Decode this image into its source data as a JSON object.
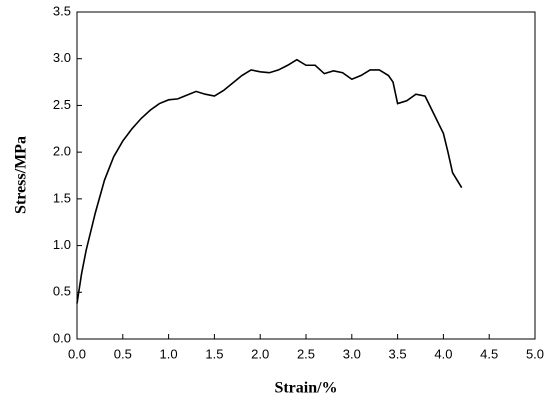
{
  "chart_data": {
    "type": "line",
    "xlabel": "Strain/%",
    "ylabel": "Stress/MPa",
    "x": [
      0.0,
      0.05,
      0.1,
      0.2,
      0.3,
      0.4,
      0.5,
      0.6,
      0.7,
      0.8,
      0.9,
      1.0,
      1.1,
      1.2,
      1.3,
      1.4,
      1.5,
      1.6,
      1.7,
      1.8,
      1.9,
      2.0,
      2.1,
      2.2,
      2.3,
      2.4,
      2.5,
      2.6,
      2.7,
      2.8,
      2.9,
      3.0,
      3.1,
      3.2,
      3.3,
      3.4,
      3.45,
      3.5,
      3.6,
      3.7,
      3.8,
      3.9,
      4.0,
      4.05,
      4.1,
      4.2
    ],
    "series": [
      {
        "color": "#000000",
        "values": [
          0.38,
          0.7,
          0.95,
          1.35,
          1.7,
          1.95,
          2.12,
          2.25,
          2.36,
          2.45,
          2.52,
          2.56,
          2.57,
          2.61,
          2.65,
          2.62,
          2.6,
          2.66,
          2.74,
          2.82,
          2.88,
          2.86,
          2.85,
          2.88,
          2.93,
          2.99,
          2.93,
          2.93,
          2.84,
          2.87,
          2.85,
          2.78,
          2.82,
          2.88,
          2.88,
          2.82,
          2.75,
          2.52,
          2.55,
          2.62,
          2.6,
          2.4,
          2.2,
          2.0,
          1.78,
          1.62
        ]
      }
    ],
    "xlim": [
      0,
      5
    ],
    "xticks": [
      {
        "value": 0,
        "label": "0.0"
      },
      0.5,
      {
        "value": 1,
        "label": "1.0"
      },
      1.5,
      {
        "value": 2,
        "label": "2.0"
      },
      2.5,
      {
        "value": 3,
        "label": "3.0"
      },
      3.5,
      {
        "value": 4,
        "label": "4.0"
      },
      4.5,
      {
        "value": 5,
        "label": "5.0"
      }
    ],
    "ylim": [
      0,
      3.5
    ],
    "yticks": [
      {
        "value": 0,
        "label": "0.0"
      },
      0.5,
      {
        "value": 1,
        "label": "1.0"
      },
      1.5,
      {
        "value": 2,
        "label": "2.0"
      },
      2.5,
      {
        "value": 3,
        "label": "3.0"
      },
      3.5
    ]
  }
}
